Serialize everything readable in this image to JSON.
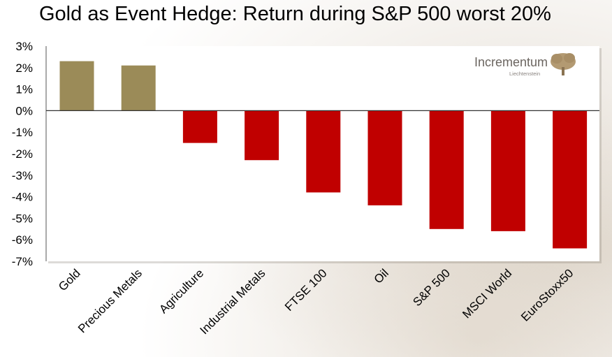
{
  "chart_data": {
    "type": "bar",
    "title": "Gold as Event Hedge: Return during S&P 500 worst 20%",
    "categories": [
      "Gold",
      "Precious Metals",
      "Agriculture",
      "Industrial Metals",
      "FTSE 100",
      "Oil",
      "S&P 500",
      "MSCI World",
      "EuroStoxx50"
    ],
    "values": [
      2.3,
      2.1,
      -1.5,
      -2.3,
      -3.8,
      -4.4,
      -5.5,
      -5.6,
      -6.4
    ],
    "ylim": [
      -7,
      3
    ],
    "yticks": [
      "3%",
      "2%",
      "1%",
      "0%",
      "-1%",
      "-2%",
      "-3%",
      "-4%",
      "-5%",
      "-6%",
      "-7%"
    ],
    "xlabel": "",
    "ylabel": "",
    "grid": false,
    "colors": {
      "positive": "#9b8b58",
      "negative": "#c00000"
    }
  },
  "logo": {
    "name": "Incrementum",
    "sub": "Liechtenstein",
    "icon": "tree-icon"
  }
}
